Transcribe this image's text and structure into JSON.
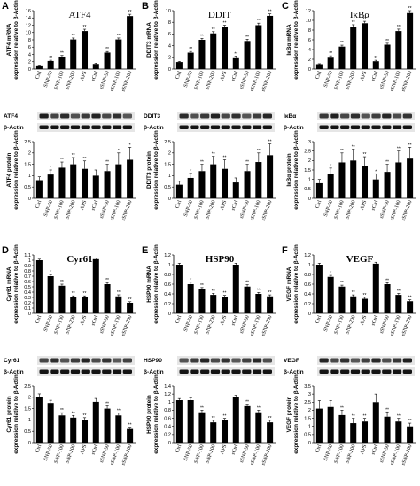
{
  "figure": {
    "panels": [
      {
        "letter": "A",
        "title": "ATF4",
        "title_bold": false,
        "protein": "ATF4",
        "mrna_ylabel": [
          "ATF4 mRNA",
          "expression relative to β-Actin"
        ],
        "prot_ylabel": [
          "ATF4 protein",
          "expression relative to β-Actin"
        ],
        "mrna_yticks": [
          "0",
          "2",
          "4",
          "6",
          "8",
          "10",
          "12",
          "14",
          "16"
        ],
        "prot_yticks": [
          "0",
          "0.5",
          "1",
          "1.5",
          "2",
          "2.5"
        ]
      },
      {
        "letter": "B",
        "title": "DDIT",
        "title_bold": false,
        "protein": "DDIT3",
        "mrna_ylabel": [
          "DDIT3 mRNA",
          "expression relative to β-Actin"
        ],
        "prot_ylabel": [
          "DDIT3 protein",
          "expression relative to β-Actin"
        ],
        "mrna_yticks": [
          "0",
          "2",
          "4",
          "6",
          "8",
          "10"
        ],
        "prot_yticks": [
          "0",
          "0.5",
          "1",
          "1.5",
          "2",
          "2.5"
        ]
      },
      {
        "letter": "C",
        "title": "IκBα",
        "title_bold": false,
        "protein": "IκBα",
        "mrna_ylabel": [
          "IκBα mRNA",
          "expression relative to β-Actin"
        ],
        "prot_ylabel": [
          "IκBα protein",
          "expression relative to β-Actin"
        ],
        "mrna_yticks": [
          "0",
          "2",
          "4",
          "6",
          "8",
          "10",
          "12"
        ],
        "prot_yticks": [
          "0",
          "0.5",
          "1",
          "1.5",
          "2",
          "2.5",
          "3"
        ]
      },
      {
        "letter": "D",
        "title": "Cyr61",
        "title_bold": true,
        "protein": "Cyr61",
        "mrna_ylabel": [
          "Cyr61 mRNA",
          "expression relative to β-Actin"
        ],
        "prot_ylabel": [
          "Cyr61 protein",
          "expression relative to β-Actin"
        ],
        "mrna_yticks": [
          "0",
          "0.1",
          "0.2",
          "0.3",
          "0.4",
          "0.5",
          "0.6",
          "0.7",
          "0.8",
          "0.9",
          "1",
          "1.1"
        ],
        "prot_yticks": [
          "0",
          "0.5",
          "1",
          "1.5",
          "2",
          "2.5"
        ]
      },
      {
        "letter": "E",
        "title": "HSP90",
        "title_bold": true,
        "protein": "HSP90",
        "mrna_ylabel": [
          "HSP90 mRNA",
          "expression relative to β-Actin"
        ],
        "prot_ylabel": [
          "HSP90 protein",
          "expression relative to β-Actin"
        ],
        "mrna_yticks": [
          "0",
          "0.2",
          "0.4",
          "0.6",
          "0.8",
          "1",
          "1.2"
        ],
        "prot_yticks": [
          "0",
          "0.2",
          "0.4",
          "0.6",
          "0.8",
          "1",
          "1.2",
          "1.4"
        ]
      },
      {
        "letter": "F",
        "title": "VEGF",
        "title_bold": true,
        "protein": "VEGF",
        "mrna_ylabel": [
          "VEGF mRNA",
          "expression relative to β-Actin"
        ],
        "prot_ylabel": [
          "VEGF protein",
          "expression relative to β-Actin"
        ],
        "mrna_yticks": [
          "0",
          "0.2",
          "0.4",
          "0.6",
          "0.8",
          "1",
          "1.2"
        ],
        "prot_yticks": [
          "0",
          "0.5",
          "1",
          "1.5",
          "2",
          "2.5",
          "3",
          "3.5"
        ]
      }
    ],
    "loading_control": "β-Actin"
  },
  "chart_data": [
    {
      "id": "A-mrna",
      "type": "bar",
      "categories": [
        "Ctrl",
        "SNP-50",
        "SNP-100",
        "SNP-200",
        "APS",
        "sCtrl",
        "sSNP-50",
        "sSNP-100",
        "sSNP-200"
      ],
      "values": [
        1,
        2.2,
        3.4,
        8.1,
        10.4,
        1.4,
        4.5,
        8.1,
        14.5
      ],
      "errors": [
        0.1,
        0.2,
        0.3,
        0.4,
        0.5,
        0.2,
        0.3,
        0.4,
        0.5
      ],
      "stars": [
        "",
        "**",
        "**",
        "**",
        "**",
        "",
        "**",
        "**",
        "**"
      ],
      "ylim": [
        0,
        16
      ]
    },
    {
      "id": "A-prot",
      "type": "bar",
      "categories": [
        "Ctrl",
        "SNP-50",
        "SNP-100",
        "SNP-200",
        "APS",
        "sCtrl",
        "sSNP-50",
        "sSNP-100",
        "sSNP-200"
      ],
      "values": [
        0.8,
        1.05,
        1.35,
        1.5,
        1.3,
        1.0,
        1.2,
        1.5,
        1.7
      ],
      "errors": [
        0.15,
        0.2,
        0.25,
        0.3,
        0.35,
        0.25,
        0.3,
        0.5,
        0.55
      ],
      "stars": [
        "",
        "*",
        "**",
        "**",
        "**",
        "",
        "**",
        "*",
        "*"
      ],
      "ylim": [
        0,
        2.5
      ]
    },
    {
      "id": "B-mrna",
      "type": "bar",
      "categories": [
        "Ctrl",
        "SNP-50",
        "SNP-100",
        "SNP-200",
        "APS",
        "sCtrl",
        "sSNP-50",
        "sSNP-100",
        "sSNP-200"
      ],
      "values": [
        1.2,
        2.8,
        5.0,
        6.1,
        7.2,
        2.0,
        4.8,
        7.5,
        9.1
      ],
      "errors": [
        0.1,
        0.2,
        0.25,
        0.3,
        0.3,
        0.2,
        0.3,
        0.35,
        0.35
      ],
      "stars": [
        "",
        "**",
        "**",
        "**",
        "**",
        "**",
        "**",
        "**",
        "**"
      ],
      "ylim": [
        0,
        10
      ]
    },
    {
      "id": "B-prot",
      "type": "bar",
      "categories": [
        "Ctrl",
        "SNP-50",
        "SNP-100",
        "SNP-200",
        "APS",
        "sCtrl",
        "sSNP-50",
        "sSNP-100",
        "sSNP-200"
      ],
      "values": [
        0.6,
        0.9,
        1.2,
        1.5,
        1.3,
        0.7,
        1.2,
        1.6,
        1.9
      ],
      "errors": [
        0.15,
        0.2,
        0.3,
        0.35,
        0.4,
        0.2,
        0.3,
        0.4,
        0.5
      ],
      "stars": [
        "",
        "*",
        "**",
        "**",
        "**",
        "",
        "**",
        "**",
        "**"
      ],
      "ylim": [
        0,
        2.5
      ]
    },
    {
      "id": "C-mrna",
      "type": "bar",
      "categories": [
        "Ctrl",
        "SNP-50",
        "SNP-100",
        "SNP-200",
        "APS",
        "sCtrl",
        "sSNP-50",
        "sSNP-100",
        "sSNP-200"
      ],
      "values": [
        1.0,
        2.5,
        4.6,
        8.7,
        9.4,
        1.6,
        5.0,
        7.8,
        11.5
      ],
      "errors": [
        0.1,
        0.2,
        0.3,
        0.4,
        0.4,
        0.2,
        0.3,
        0.4,
        0.5
      ],
      "stars": [
        "",
        "**",
        "**",
        "**",
        "**",
        "**",
        "**",
        "**",
        "**"
      ],
      "ylim": [
        0,
        12
      ]
    },
    {
      "id": "C-prot",
      "type": "bar",
      "categories": [
        "Ctrl",
        "SNP-50",
        "SNP-100",
        "SNP-200",
        "APS",
        "sCtrl",
        "sSNP-50",
        "sSNP-100",
        "sSNP-200"
      ],
      "values": [
        0.8,
        1.3,
        1.9,
        2.0,
        1.7,
        1.0,
        1.4,
        1.9,
        2.1
      ],
      "errors": [
        0.2,
        0.3,
        0.5,
        0.6,
        0.5,
        0.3,
        0.4,
        0.6,
        0.6
      ],
      "stars": [
        "",
        "*",
        "**",
        "**",
        "**",
        "*",
        "**",
        "**",
        "**"
      ],
      "ylim": [
        0,
        3
      ]
    },
    {
      "id": "D-mrna",
      "type": "bar",
      "categories": [
        "Ctrl",
        "SNP-50",
        "SNP-100",
        "SNP-200",
        "APS",
        "sCtrl",
        "sSNP-50",
        "sSNP-100",
        "sSNP-200"
      ],
      "values": [
        1.0,
        0.7,
        0.52,
        0.3,
        0.3,
        1.02,
        0.55,
        0.32,
        0.2
      ],
      "errors": [
        0.02,
        0.03,
        0.03,
        0.03,
        0.03,
        0.02,
        0.03,
        0.03,
        0.02
      ],
      "stars": [
        "",
        "*",
        "**",
        "**",
        "**",
        "",
        "**",
        "**",
        "**"
      ],
      "ylim": [
        0,
        1.1
      ]
    },
    {
      "id": "D-prot",
      "type": "bar",
      "categories": [
        "Ctrl",
        "SNP-50",
        "SNP-100",
        "SNP-200",
        "APS",
        "sCtrl",
        "sSNP-50",
        "sSNP-100",
        "sSNP-200"
      ],
      "values": [
        2.0,
        1.75,
        1.2,
        1.1,
        1.0,
        1.8,
        1.5,
        1.2,
        0.6
      ],
      "errors": [
        0.15,
        0.12,
        0.12,
        0.1,
        0.1,
        0.15,
        0.12,
        0.1,
        0.08
      ],
      "stars": [
        "",
        "",
        "**",
        "**",
        "**",
        "",
        "**",
        "**",
        "**"
      ],
      "ylim": [
        0,
        2.5
      ]
    },
    {
      "id": "E-mrna",
      "type": "bar",
      "categories": [
        "Ctrl",
        "SNP-50",
        "SNP-100",
        "SNP-200",
        "APS",
        "sCtrl",
        "sSNP-50",
        "sSNP-100",
        "sSNP-200"
      ],
      "values": [
        1.0,
        0.6,
        0.5,
        0.38,
        0.34,
        1.0,
        0.55,
        0.4,
        0.35
      ],
      "errors": [
        0.03,
        0.04,
        0.03,
        0.03,
        0.03,
        0.03,
        0.04,
        0.03,
        0.03
      ],
      "stars": [
        "",
        "*",
        "**",
        "**",
        "**",
        "",
        "**",
        "**",
        "**"
      ],
      "ylim": [
        0,
        1.2
      ]
    },
    {
      "id": "E-prot",
      "type": "bar",
      "categories": [
        "Ctrl",
        "SNP-50",
        "SNP-100",
        "SNP-200",
        "APS",
        "sCtrl",
        "sSNP-50",
        "sSNP-100",
        "sSNP-200"
      ],
      "values": [
        1.05,
        1.05,
        0.75,
        0.5,
        0.55,
        1.12,
        0.9,
        0.75,
        0.5
      ],
      "errors": [
        0.04,
        0.05,
        0.05,
        0.05,
        0.05,
        0.05,
        0.05,
        0.05,
        0.05
      ],
      "stars": [
        "",
        "",
        "**",
        "**",
        "**",
        "",
        "**",
        "**",
        "**"
      ],
      "ylim": [
        0,
        1.4
      ]
    },
    {
      "id": "F-mrna",
      "type": "bar",
      "categories": [
        "Ctrl",
        "SNP-50",
        "SNP-100",
        "SNP-200",
        "APS",
        "sCtrl",
        "sSNP-50",
        "sSNP-100",
        "sSNP-200"
      ],
      "values": [
        1.0,
        0.75,
        0.55,
        0.35,
        0.3,
        1.02,
        0.6,
        0.38,
        0.25
      ],
      "errors": [
        0.03,
        0.03,
        0.03,
        0.03,
        0.03,
        0.03,
        0.03,
        0.03,
        0.03
      ],
      "stars": [
        "",
        "*",
        "**",
        "**",
        "**",
        "",
        "**",
        "**",
        "**"
      ],
      "ylim": [
        0,
        1.2
      ]
    },
    {
      "id": "F-prot",
      "type": "bar",
      "categories": [
        "Ctrl",
        "SNP-50",
        "SNP-100",
        "SNP-200",
        "APS",
        "sCtrl",
        "sSNP-50",
        "sSNP-100",
        "sSNP-200"
      ],
      "values": [
        2.1,
        2.2,
        1.7,
        1.2,
        1.3,
        2.5,
        1.6,
        1.3,
        1.0
      ],
      "errors": [
        0.5,
        0.4,
        0.3,
        0.3,
        0.2,
        0.5,
        0.3,
        0.2,
        0.2
      ],
      "stars": [
        "",
        "",
        "**",
        "**",
        "**",
        "",
        "**",
        "**",
        "**"
      ],
      "ylim": [
        0,
        3.5
      ]
    }
  ]
}
